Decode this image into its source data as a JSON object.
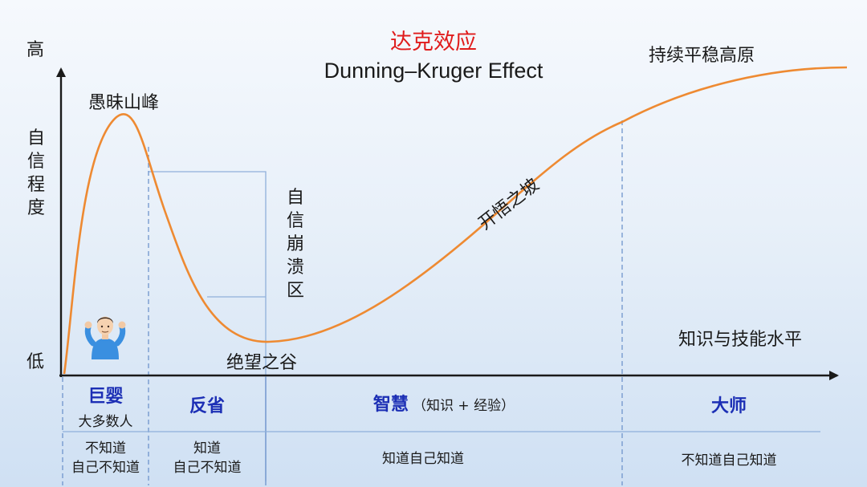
{
  "title": {
    "cn": "达克效应",
    "en": "Dunning–Kruger Effect"
  },
  "axes": {
    "y_high": "高",
    "y_low": "低",
    "y_label": "自信程度",
    "x_label": "知识与技能水平"
  },
  "curve_labels": {
    "peak": "愚昧山峰",
    "valley": "绝望之谷",
    "slope": "开悟之坡",
    "plateau": "持续平稳高原",
    "collapse_zone": "自信崩溃区"
  },
  "stages": [
    {
      "name": "巨婴",
      "sub": "大多数人",
      "knowledge": "不知道\n自己不知道"
    },
    {
      "name": "反省",
      "sub": "",
      "knowledge": "知道\n自己不知道"
    },
    {
      "name": "智慧",
      "sub": "（知识 + 经验）",
      "knowledge": "知道自己知道"
    },
    {
      "name": "大师",
      "sub": "",
      "knowledge": "不知道自己知道"
    }
  ],
  "colors": {
    "curve": "#ee8a32",
    "title_cn": "#e01c1c",
    "stage_label": "#1c2fb5",
    "divider": "#6f94cc",
    "axis": "#1a1a1a"
  },
  "icons": {
    "person": "shrugging-person-icon"
  }
}
